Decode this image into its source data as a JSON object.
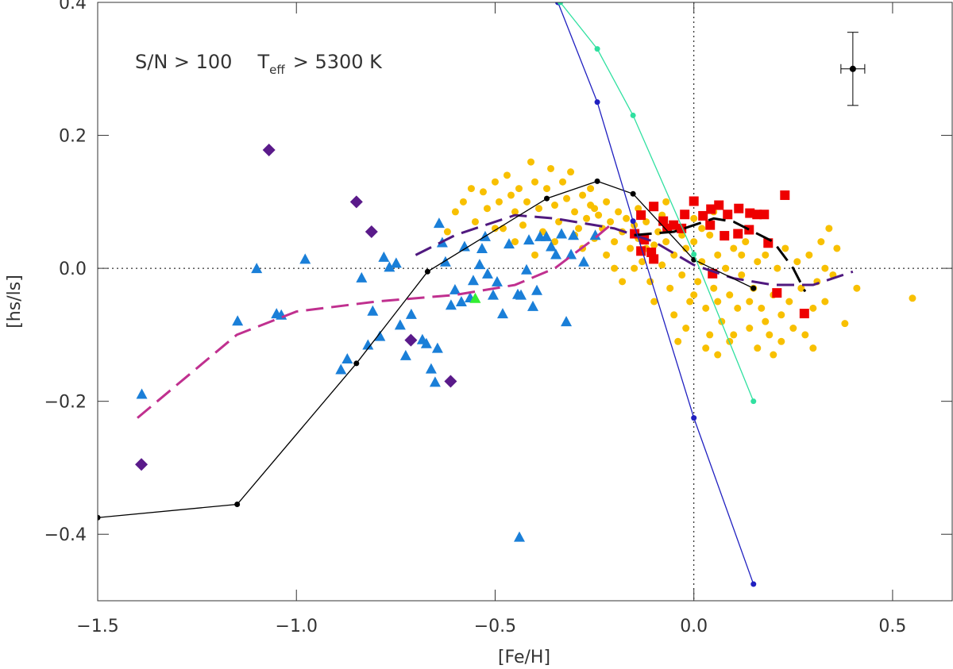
{
  "chart_data": {
    "type": "scatter",
    "xlabel": "[Fe/H]",
    "ylabel": "[hs/ls]",
    "annotation": {
      "parts": [
        "S/N > 100",
        "T",
        "eff",
        "> 5300 K"
      ]
    },
    "xlim": [
      -1.5,
      0.65
    ],
    "ylim": [
      -0.5,
      0.4
    ],
    "xticks": [
      {
        "value": -1.5,
        "label": "−1.5"
      },
      {
        "value": -1.0,
        "label": "−1.0"
      },
      {
        "value": -0.5,
        "label": "−0.5"
      },
      {
        "value": 0.0,
        "label": "0.0"
      },
      {
        "value": 0.5,
        "label": "0.5"
      }
    ],
    "yticks": [
      {
        "value": -0.4,
        "label": "−0.4"
      },
      {
        "value": -0.2,
        "label": "−0.2"
      },
      {
        "value": 0.0,
        "label": "0.0"
      },
      {
        "value": 0.2,
        "label": "0.2"
      },
      {
        "value": 0.4,
        "label": "0.4"
      }
    ],
    "hlines": [
      0
    ],
    "vlines": [
      0
    ],
    "series": [
      {
        "color": "#f8c000",
        "marker": "circle",
        "points": [
          [
            -0.62,
            0.055
          ],
          [
            -0.6,
            0.085
          ],
          [
            -0.58,
            0.1
          ],
          [
            -0.56,
            0.12
          ],
          [
            -0.55,
            0.07
          ],
          [
            -0.53,
            0.115
          ],
          [
            -0.52,
            0.09
          ],
          [
            -0.5,
            0.13
          ],
          [
            -0.49,
            0.1
          ],
          [
            -0.48,
            0.06
          ],
          [
            -0.47,
            0.14
          ],
          [
            -0.46,
            0.11
          ],
          [
            -0.45,
            0.085
          ],
          [
            -0.44,
            0.12
          ],
          [
            -0.43,
            0.065
          ],
          [
            -0.42,
            0.1
          ],
          [
            -0.41,
            0.16
          ],
          [
            -0.4,
            0.13
          ],
          [
            -0.39,
            0.09
          ],
          [
            -0.38,
            0.055
          ],
          [
            -0.37,
            0.12
          ],
          [
            -0.36,
            0.15
          ],
          [
            -0.35,
            0.095
          ],
          [
            -0.34,
            0.07
          ],
          [
            -0.33,
            0.13
          ],
          [
            -0.32,
            0.105
          ],
          [
            -0.31,
            0.145
          ],
          [
            -0.3,
            0.085
          ],
          [
            -0.29,
            0.06
          ],
          [
            -0.28,
            0.11
          ],
          [
            -0.27,
            0.075
          ],
          [
            -0.26,
            0.095
          ],
          [
            -0.25,
            0.045
          ],
          [
            -0.24,
            0.08
          ],
          [
            -0.23,
            0.06
          ],
          [
            -0.22,
            0.1
          ],
          [
            -0.21,
            0.07
          ],
          [
            -0.2,
            0.04
          ],
          [
            -0.19,
            0.085
          ],
          [
            -0.18,
            0.055
          ],
          [
            -0.17,
            0.075
          ],
          [
            -0.16,
            0.03
          ],
          [
            -0.15,
            0.065
          ],
          [
            -0.14,
            0.045
          ],
          [
            -0.13,
            0.01
          ],
          [
            -0.12,
            0.07
          ],
          [
            -0.11,
            -0.02
          ],
          [
            -0.1,
            0.035
          ],
          [
            -0.09,
            0.055
          ],
          [
            -0.08,
            0.005
          ],
          [
            -0.07,
            0.04
          ],
          [
            -0.06,
            -0.03
          ],
          [
            -0.05,
            0.02
          ],
          [
            -0.04,
            0.06
          ],
          [
            -0.03,
            -0.01
          ],
          [
            -0.02,
            0.03
          ],
          [
            -0.01,
            -0.05
          ],
          [
            0.0,
            0.04
          ],
          [
            0.01,
            -0.02
          ],
          [
            0.02,
            0.01
          ],
          [
            0.03,
            -0.06
          ],
          [
            0.04,
            0.05
          ],
          [
            0.05,
            -0.03
          ],
          [
            0.06,
            0.02
          ],
          [
            0.07,
            -0.08
          ],
          [
            0.08,
            0.0
          ],
          [
            0.09,
            -0.04
          ],
          [
            0.1,
            0.03
          ],
          [
            0.11,
            -0.06
          ],
          [
            0.12,
            -0.01
          ],
          [
            0.13,
            0.04
          ],
          [
            0.14,
            -0.09
          ],
          [
            0.15,
            -0.03
          ],
          [
            0.16,
            0.01
          ],
          [
            0.17,
            -0.06
          ],
          [
            0.18,
            0.02
          ],
          [
            0.19,
            -0.1
          ],
          [
            0.2,
            -0.04
          ],
          [
            0.21,
            0.0
          ],
          [
            0.22,
            -0.07
          ],
          [
            0.23,
            0.03
          ],
          [
            0.24,
            -0.05
          ],
          [
            0.25,
            -0.09
          ],
          [
            0.26,
            0.01
          ],
          [
            0.27,
            -0.03
          ],
          [
            0.28,
            -0.1
          ],
          [
            0.29,
            0.02
          ],
          [
            0.3,
            -0.06
          ],
          [
            0.31,
            -0.02
          ],
          [
            0.32,
            0.04
          ],
          [
            0.33,
            -0.05
          ],
          [
            0.34,
            0.06
          ],
          [
            0.35,
            -0.01
          ],
          [
            0.36,
            0.03
          ],
          [
            0.38,
            -0.083
          ],
          [
            0.41,
            -0.03
          ],
          [
            0.55,
            -0.045
          ],
          [
            -0.2,
            0.0
          ],
          [
            -0.18,
            -0.02
          ],
          [
            -0.15,
            0.0
          ],
          [
            -0.12,
            0.03
          ],
          [
            -0.1,
            -0.05
          ],
          [
            -0.08,
            0.08
          ],
          [
            -0.05,
            -0.07
          ],
          [
            -0.03,
            0.05
          ],
          [
            0.0,
            -0.04
          ],
          [
            0.02,
            0.06
          ],
          [
            0.04,
            -0.1
          ],
          [
            0.06,
            -0.05
          ],
          [
            0.08,
            0.05
          ],
          [
            0.1,
            -0.1
          ],
          [
            0.12,
            0.02
          ],
          [
            0.14,
            -0.05
          ],
          [
            -0.22,
            0.02
          ],
          [
            -0.25,
            0.09
          ],
          [
            -0.28,
            0.03
          ],
          [
            -0.3,
            0.05
          ],
          [
            -0.35,
            0.04
          ],
          [
            -0.4,
            0.02
          ],
          [
            -0.45,
            0.04
          ],
          [
            -0.5,
            0.06
          ],
          [
            -0.26,
            0.12
          ],
          [
            -0.14,
            0.09
          ],
          [
            -0.07,
            0.1
          ],
          [
            0.0,
            0.075
          ],
          [
            0.05,
            0.085
          ],
          [
            -0.02,
            -0.09
          ],
          [
            0.03,
            -0.12
          ],
          [
            0.09,
            -0.11
          ],
          [
            0.18,
            -0.08
          ],
          [
            0.22,
            -0.11
          ],
          [
            0.3,
            -0.12
          ],
          [
            0.33,
            0.0
          ],
          [
            0.06,
            -0.13
          ],
          [
            -0.04,
            -0.11
          ],
          [
            0.16,
            -0.12
          ],
          [
            0.2,
            -0.13
          ]
        ]
      },
      {
        "color": "#1a7fd8",
        "marker": "triangle",
        "points": [
          [
            -1.389,
            -0.189
          ],
          [
            -1.148,
            -0.079
          ],
          [
            -1.1,
            0.0
          ],
          [
            -1.05,
            -0.068
          ],
          [
            -1.038,
            -0.07
          ],
          [
            -0.978,
            0.014
          ],
          [
            -0.888,
            -0.152
          ],
          [
            -0.872,
            -0.136
          ],
          [
            -0.836,
            -0.014
          ],
          [
            -0.82,
            -0.115
          ],
          [
            -0.808,
            -0.064
          ],
          [
            -0.79,
            -0.102
          ],
          [
            -0.78,
            0.017
          ],
          [
            -0.766,
            0.002
          ],
          [
            -0.749,
            0.008
          ],
          [
            -0.739,
            -0.085
          ],
          [
            -0.725,
            -0.131
          ],
          [
            -0.711,
            -0.069
          ],
          [
            -0.683,
            -0.107
          ],
          [
            -0.673,
            -0.113
          ],
          [
            -0.661,
            -0.151
          ],
          [
            -0.651,
            -0.171
          ],
          [
            -0.645,
            -0.12
          ],
          [
            -0.641,
            0.068
          ],
          [
            -0.633,
            0.039
          ],
          [
            -0.625,
            0.01
          ],
          [
            -0.611,
            -0.055
          ],
          [
            -0.601,
            -0.032
          ],
          [
            -0.585,
            -0.05
          ],
          [
            -0.577,
            0.033
          ],
          [
            -0.563,
            -0.044
          ],
          [
            -0.555,
            -0.018
          ],
          [
            -0.539,
            0.006
          ],
          [
            -0.533,
            0.03
          ],
          [
            -0.525,
            0.048
          ],
          [
            -0.519,
            -0.008
          ],
          [
            -0.505,
            -0.04
          ],
          [
            -0.495,
            -0.02
          ],
          [
            -0.481,
            -0.068
          ],
          [
            -0.465,
            0.037
          ],
          [
            -0.443,
            -0.039
          ],
          [
            -0.435,
            -0.04
          ],
          [
            -0.421,
            -0.002
          ],
          [
            -0.415,
            0.043
          ],
          [
            -0.405,
            -0.057
          ],
          [
            -0.395,
            -0.033
          ],
          [
            -0.387,
            0.048
          ],
          [
            -0.371,
            0.048
          ],
          [
            -0.359,
            0.033
          ],
          [
            -0.347,
            0.021
          ],
          [
            -0.333,
            0.052
          ],
          [
            -0.321,
            -0.08
          ],
          [
            -0.309,
            0.021
          ],
          [
            -0.303,
            0.05
          ],
          [
            -0.277,
            0.01
          ],
          [
            -0.248,
            0.05
          ],
          [
            -0.439,
            -0.404
          ]
        ]
      },
      {
        "color": "#5a1a8a",
        "marker": "diamond",
        "points": [
          [
            -1.069,
            0.178
          ],
          [
            -0.849,
            0.1
          ],
          [
            -0.811,
            0.055
          ],
          [
            -0.712,
            -0.108
          ],
          [
            -0.612,
            -0.17
          ],
          [
            -1.39,
            -0.295
          ]
        ]
      },
      {
        "color": "#ee0000",
        "marker": "square",
        "points": [
          [
            0.0,
            0.101
          ],
          [
            0.023,
            0.079
          ],
          [
            0.043,
            0.089
          ],
          [
            0.063,
            0.095
          ],
          [
            0.085,
            0.081
          ],
          [
            0.113,
            0.09
          ],
          [
            0.141,
            0.083
          ],
          [
            0.177,
            0.081
          ],
          [
            0.229,
            0.11
          ],
          [
            -0.133,
            0.08
          ],
          [
            -0.101,
            0.093
          ],
          [
            -0.077,
            0.071
          ],
          [
            -0.067,
            0.06
          ],
          [
            -0.051,
            0.065
          ],
          [
            -0.031,
            0.06
          ],
          [
            -0.023,
            0.081
          ],
          [
            0.041,
            0.065
          ],
          [
            0.077,
            0.049
          ],
          [
            0.111,
            0.052
          ],
          [
            0.139,
            0.058
          ],
          [
            0.159,
            0.081
          ],
          [
            0.187,
            0.038
          ],
          [
            -0.149,
            0.052
          ],
          [
            -0.125,
            0.043
          ],
          [
            -0.107,
            0.024
          ],
          [
            -0.133,
            0.026
          ],
          [
            -0.101,
            0.014
          ],
          [
            0.047,
            -0.008
          ],
          [
            0.209,
            -0.037
          ],
          [
            0.278,
            -0.068
          ]
        ]
      },
      {
        "color": "#33ee33",
        "marker": "triangle",
        "points": [
          [
            -0.55,
            -0.045
          ]
        ]
      },
      {
        "color": "#c0308f",
        "line": true,
        "dash": "long",
        "points": [
          [
            -1.4,
            -0.225
          ],
          [
            -1.15,
            -0.1
          ],
          [
            -1.0,
            -0.065
          ],
          [
            -0.8,
            -0.05
          ],
          [
            -0.6,
            -0.04
          ],
          [
            -0.45,
            -0.025
          ],
          [
            -0.35,
            0.0
          ],
          [
            -0.25,
            0.045
          ],
          [
            -0.2,
            0.07
          ]
        ]
      },
      {
        "color": "#50197f",
        "line": true,
        "dash": "long",
        "points": [
          [
            -0.7,
            0.02
          ],
          [
            -0.6,
            0.05
          ],
          [
            -0.45,
            0.08
          ],
          [
            -0.35,
            0.075
          ],
          [
            -0.2,
            0.06
          ],
          [
            -0.1,
            0.04
          ],
          [
            0.0,
            0.005
          ],
          [
            0.1,
            -0.015
          ],
          [
            0.2,
            -0.025
          ],
          [
            0.3,
            -0.025
          ],
          [
            0.4,
            -0.005
          ]
        ]
      },
      {
        "color": "#000000",
        "line": true,
        "dash": "long",
        "points": [
          [
            -0.15,
            0.05
          ],
          [
            -0.05,
            0.055
          ],
          [
            0.05,
            0.075
          ],
          [
            0.1,
            0.07
          ],
          [
            0.2,
            0.04
          ],
          [
            0.25,
            0.0
          ],
          [
            0.28,
            -0.035
          ]
        ]
      },
      {
        "color": "#000000",
        "line": true,
        "marker": "dot",
        "points": [
          [
            -1.5,
            -0.375
          ],
          [
            -1.149,
            -0.355
          ],
          [
            -0.849,
            -0.143
          ],
          [
            -0.67,
            -0.005
          ],
          [
            -0.37,
            0.105
          ],
          [
            -0.243,
            0.131
          ],
          [
            -0.153,
            0.112
          ],
          [
            0.0,
            0.013
          ],
          [
            0.15,
            -0.03
          ]
        ]
      },
      {
        "color": "#2020c0",
        "line": true,
        "marker": "dot",
        "points": [
          [
            -0.342,
            0.4
          ],
          [
            -0.243,
            0.25
          ],
          [
            -0.153,
            0.071
          ],
          [
            0.0,
            -0.225
          ],
          [
            0.15,
            -0.475
          ]
        ]
      },
      {
        "color": "#30e0a0",
        "line": true,
        "marker": "dot",
        "points": [
          [
            -0.336,
            0.4
          ],
          [
            -0.243,
            0.33
          ],
          [
            -0.153,
            0.23
          ],
          [
            0.0,
            0.021
          ],
          [
            0.15,
            -0.2
          ]
        ]
      }
    ],
    "errorbar": {
      "x": 0.4,
      "value": 0.3,
      "xerr": 0.03,
      "yerr": 0.055,
      "color": "#000000"
    }
  }
}
